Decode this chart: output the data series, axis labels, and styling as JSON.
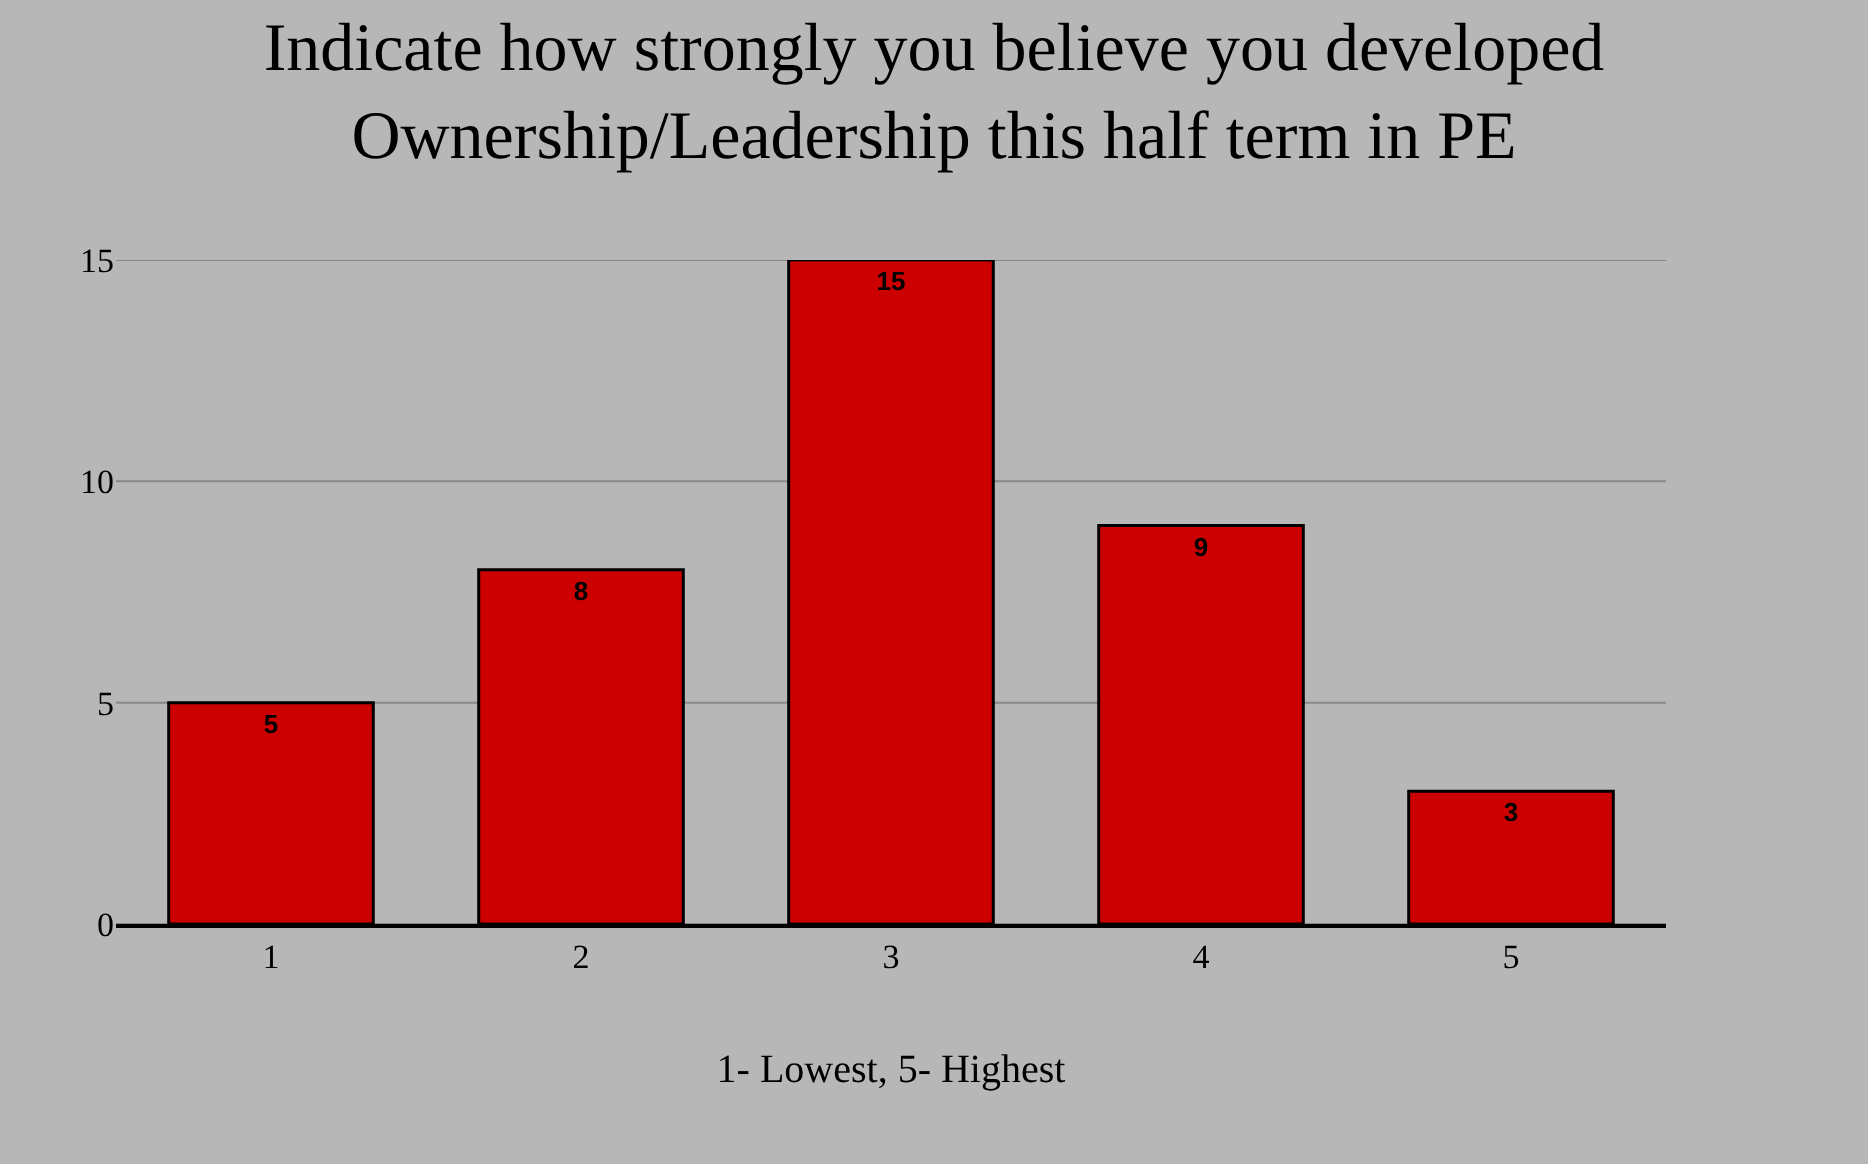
{
  "chart_data": {
    "type": "bar",
    "title": "Indicate how strongly you believe you developed\nOwnership/Leadership this half term in PE",
    "xlabel": "1- Lowest, 5- Highest",
    "categories": [
      "1",
      "2",
      "3",
      "4",
      "5"
    ],
    "values": [
      5,
      8,
      15,
      9,
      3
    ],
    "color": "#cc0000",
    "ylim": [
      0,
      15
    ],
    "yticks": [
      0,
      5,
      10,
      15
    ],
    "grid": "y",
    "data_labels": true
  }
}
